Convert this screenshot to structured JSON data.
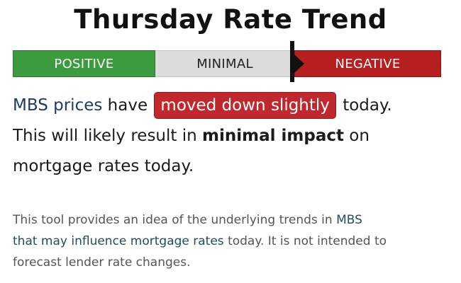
{
  "title": "Thursday Rate Trend",
  "gauge": {
    "segments": [
      {
        "label": "POSITIVE",
        "color": "#3d9b3f"
      },
      {
        "label": "MINIMAL",
        "color": "#dcdcdc"
      },
      {
        "label": "NEGATIVE",
        "color": "#b51f1f"
      }
    ]
  },
  "summary": {
    "part1": "MBS prices",
    "part2": " have ",
    "badge": "moved down slightly",
    "part3": " today.",
    "line2a": "This will likely result in ",
    "line2b": "minimal impact",
    "line2c": " on",
    "line3": "mortgage rates today."
  },
  "note": {
    "part1": "This tool provides an idea of the underlying trends in ",
    "link1": "MBS",
    "break_text": "that may influence mortgage rates",
    "part2": " today. It is not intended to",
    "line3": "forecast lender rate changes."
  }
}
